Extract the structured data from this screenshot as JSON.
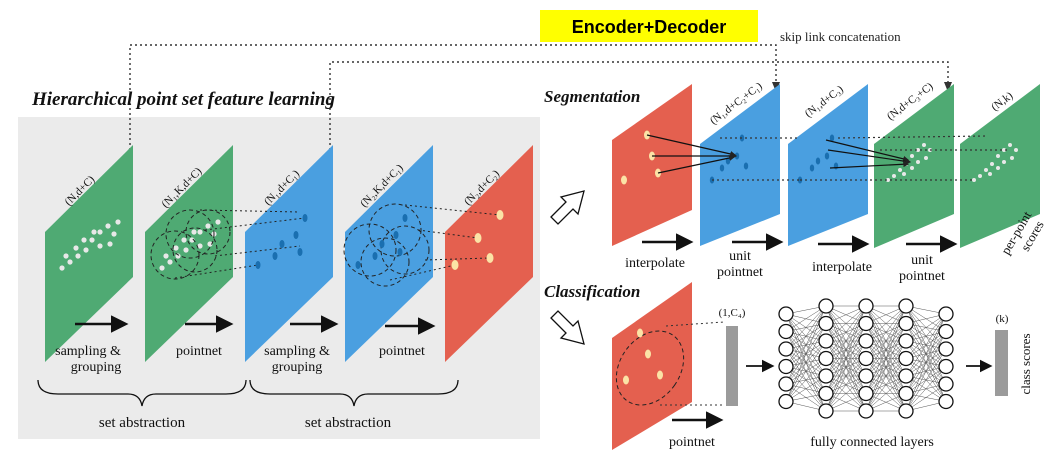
{
  "header": {
    "badge": "Encoder+Decoder",
    "skip_link": "skip link concatenation"
  },
  "hierarchical": {
    "title": "Hierarchical point set feature learning",
    "layers": [
      {
        "shape": "(N,d+C)",
        "color": "#4faa73"
      },
      {
        "shape": "(N₁,K,d+C)",
        "color": "#4faa73"
      },
      {
        "shape": "(N₁,d+C₁)",
        "color": "#4a9fe0"
      },
      {
        "shape": "(N₂,K,d+C₁)",
        "color": "#4a9fe0"
      },
      {
        "shape": "(N₂,d+C₂)",
        "color": "#e4604f"
      }
    ],
    "steps": [
      {
        "line1": "sampling &",
        "line2": "grouping"
      },
      {
        "line1": "pointnet",
        "line2": ""
      },
      {
        "line1": "sampling &",
        "line2": "grouping"
      },
      {
        "line1": "pointnet",
        "line2": ""
      }
    ],
    "brace_labels": [
      "set abstraction",
      "set abstraction"
    ]
  },
  "segmentation": {
    "title": "Segmentation",
    "layers": [
      {
        "shape": "",
        "color": "#e4604f"
      },
      {
        "shape": "(N₁,d+C₂+C₁)",
        "color": "#4a9fe0"
      },
      {
        "shape": "(N₁,d+C₃)",
        "color": "#4a9fe0"
      },
      {
        "shape": "(N,d+C₃+C)",
        "color": "#4faa73"
      },
      {
        "shape": "(N,k)",
        "color": "#4faa73"
      }
    ],
    "steps": [
      {
        "line1": "interpolate",
        "line2": ""
      },
      {
        "line1": "unit",
        "line2": "pointnet"
      },
      {
        "line1": "interpolate",
        "line2": ""
      },
      {
        "line1": "unit",
        "line2": "pointnet"
      }
    ],
    "side_label_1": "per-point",
    "side_label_2": "scores"
  },
  "classification": {
    "title": "Classification",
    "vector_label": "(1,C₄)",
    "step_label": "pointnet",
    "fc_label": "fully connected layers",
    "output_shape": "(k)",
    "output_label": "class scores"
  },
  "colors": {
    "green": "#4faa73",
    "blue": "#4a9fe0",
    "red": "#e4604f",
    "badge_bg": "#ffff00",
    "panel_bg": "#ebebeb"
  }
}
